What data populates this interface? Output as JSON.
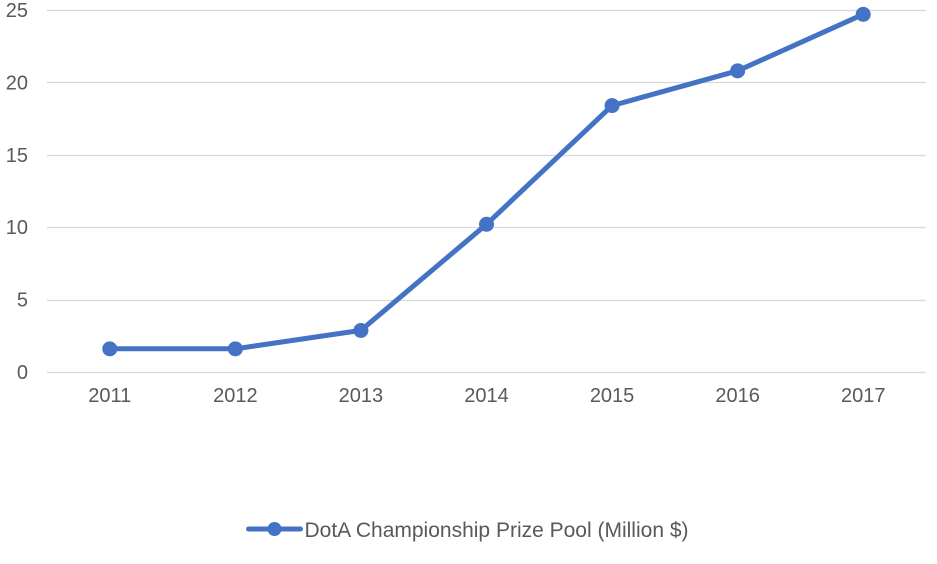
{
  "chart_data": {
    "type": "line",
    "title": "",
    "xlabel": "",
    "ylabel": "",
    "categories": [
      "2011",
      "2012",
      "2013",
      "2014",
      "2015",
      "2016",
      "2017"
    ],
    "series": [
      {
        "name": "DotA Championship Prize Pool (Million $)",
        "values": [
          1.6,
          1.6,
          2.87,
          10.2,
          18.4,
          20.8,
          24.7
        ],
        "color": "#4472C4"
      }
    ],
    "ylim": [
      0,
      25
    ],
    "yticks": [
      0,
      5,
      10,
      15,
      20,
      25
    ],
    "grid": true,
    "legend": "bottom",
    "colors": {
      "gridline": "#D9D9D9",
      "axis_text": "#595959"
    }
  }
}
